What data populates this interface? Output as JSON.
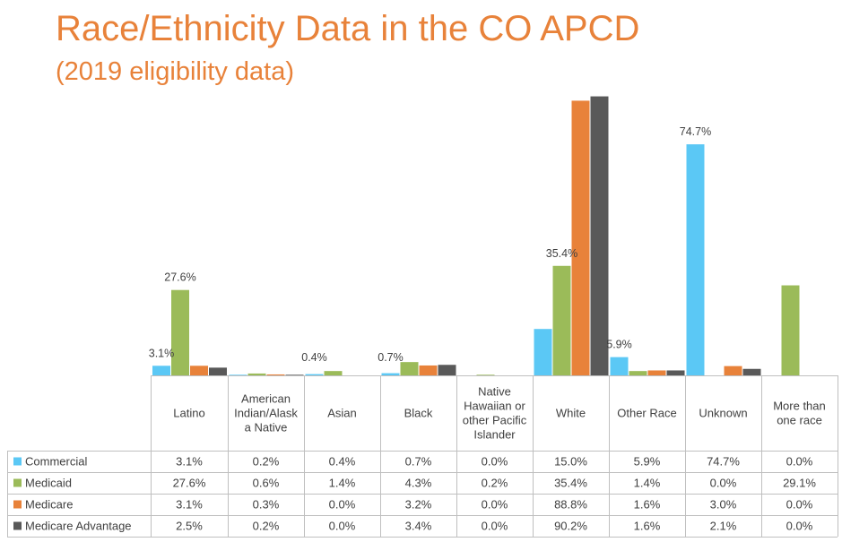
{
  "title": "Race/Ethnicity Data in the CO APCD",
  "subtitle": "(2019 eligibility data)",
  "chart_data": {
    "type": "bar",
    "categories": [
      [
        "Latino"
      ],
      [
        "American",
        "Indian/Alask",
        "a Native"
      ],
      [
        "Asian"
      ],
      [
        "Black"
      ],
      [
        "Native",
        "Hawaiian or",
        "other Pacific",
        "Islander"
      ],
      [
        "White"
      ],
      [
        "Other Race"
      ],
      [
        "Unknown"
      ],
      [
        "More than",
        "one race"
      ]
    ],
    "series": [
      {
        "name": "Commercial",
        "color": "#5bc8f5",
        "values": [
          3.1,
          0.2,
          0.4,
          0.7,
          0.0,
          15.0,
          5.9,
          74.7,
          0.0
        ],
        "cells": [
          "3.1%",
          "0.2%",
          "0.4%",
          "0.7%",
          "0.0%",
          "15.0%",
          "5.9%",
          "74.7%",
          "0.0%"
        ]
      },
      {
        "name": "Medicaid",
        "color": "#9bbb59",
        "values": [
          27.6,
          0.6,
          1.4,
          4.3,
          0.2,
          35.4,
          1.4,
          0.0,
          29.1
        ],
        "cells": [
          "27.6%",
          "0.6%",
          "1.4%",
          "4.3%",
          "0.2%",
          "35.4%",
          "1.4%",
          "0.0%",
          "29.1%"
        ]
      },
      {
        "name": "Medicare",
        "color": "#e8823a",
        "values": [
          3.1,
          0.3,
          0.0,
          3.2,
          0.0,
          88.8,
          1.6,
          3.0,
          0.0
        ],
        "cells": [
          "3.1%",
          "0.3%",
          "0.0%",
          "3.2%",
          "0.0%",
          "88.8%",
          "1.6%",
          "3.0%",
          "0.0%"
        ]
      },
      {
        "name": "Medicare Advantage",
        "color": "#595959",
        "values": [
          2.5,
          0.2,
          0.0,
          3.4,
          0.0,
          90.2,
          1.6,
          2.1,
          0.0
        ],
        "cells": [
          "2.5%",
          "0.2%",
          "0.0%",
          "3.4%",
          "0.0%",
          "90.2%",
          "1.6%",
          "2.1%",
          "0.0%"
        ]
      }
    ],
    "data_labels": [
      {
        "category": 0,
        "series": 0,
        "text": "3.1%"
      },
      {
        "category": 0,
        "series": 1,
        "text": "27.6%"
      },
      {
        "category": 2,
        "series": 0,
        "text": "0.4%"
      },
      {
        "category": 3,
        "series": 0,
        "text": "0.7%"
      },
      {
        "category": 5,
        "series": 1,
        "text": "35.4%"
      },
      {
        "category": 6,
        "series": 0,
        "text": "5.9%"
      },
      {
        "category": 7,
        "series": 0,
        "text": "74.7%"
      }
    ],
    "ylim": [
      0,
      95
    ],
    "grid": false,
    "legend": "data-table"
  }
}
